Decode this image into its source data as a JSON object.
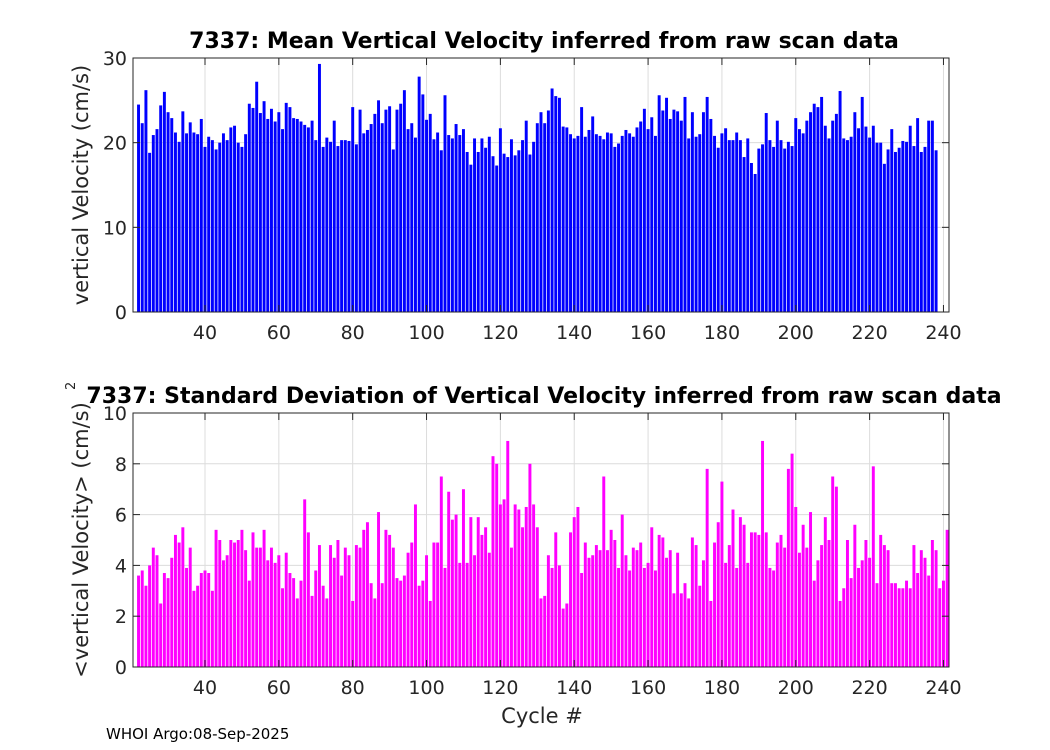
{
  "colors": {
    "top_bars": "#0000ff",
    "bottom_bars": "#ff00ff",
    "grid": "#dcdcdc",
    "axis": "#262626"
  },
  "footer": "WHOI Argo:08-Sep-2025",
  "chart_data": [
    {
      "type": "bar",
      "title": "7337: Mean Vertical Velocity inferred from raw scan data",
      "xlabel": "",
      "ylabel": "vertical Velocity (cm/s)",
      "xlim": [
        20.5,
        241.5
      ],
      "ylim": [
        0,
        30
      ],
      "xticks": [
        40,
        60,
        80,
        100,
        120,
        140,
        160,
        180,
        200,
        220,
        240
      ],
      "xtick_labels": [
        "40",
        "60",
        "80",
        "100",
        "120",
        "140",
        "160",
        "180",
        "200",
        "220",
        "240"
      ],
      "yticks": [
        0,
        10,
        20,
        30
      ],
      "ytick_labels": [
        "0",
        "10",
        "20",
        "30"
      ],
      "grid": true,
      "x_start": 22,
      "values": [
        24.5,
        22.3,
        26.2,
        18.8,
        20.9,
        21.6,
        24.4,
        26.0,
        23.6,
        22.9,
        21.2,
        20.1,
        23.7,
        21.1,
        22.4,
        21.2,
        21.0,
        22.8,
        19.5,
        20.7,
        20.3,
        19.2,
        20.0,
        21.1,
        20.3,
        21.8,
        22.0,
        20.0,
        19.5,
        21.0,
        24.6,
        24.1,
        27.2,
        23.5,
        24.9,
        22.8,
        24.0,
        22.5,
        23.6,
        21.6,
        24.7,
        24.2,
        22.9,
        22.8,
        22.5,
        22.1,
        21.8,
        22.6,
        20.3,
        29.3,
        19.5,
        20.6,
        20.1,
        22.6,
        19.6,
        20.3,
        20.3,
        20.2,
        24.2,
        19.8,
        23.9,
        21.1,
        21.5,
        22.2,
        23.4,
        25.0,
        22.3,
        23.9,
        24.3,
        19.2,
        23.9,
        24.6,
        26.2,
        21.6,
        22.3,
        20.6,
        27.8,
        25.7,
        22.7,
        23.4,
        20.4,
        21.2,
        19.1,
        25.6,
        20.9,
        20.5,
        22.2,
        20.9,
        21.6,
        18.9,
        17.4,
        20.5,
        18.9,
        20.5,
        19.4,
        20.7,
        18.4,
        17.3,
        21.7,
        18.7,
        18.3,
        20.4,
        18.5,
        19.1,
        20.3,
        22.6,
        18.6,
        20.1,
        22.3,
        23.6,
        22.3,
        23.8,
        26.4,
        25.5,
        25.3,
        21.9,
        21.8,
        21.0,
        20.5,
        20.8,
        24.2,
        20.7,
        21.5,
        23.1,
        21.0,
        20.8,
        20.4,
        21.2,
        21.1,
        19.5,
        19.9,
        20.8,
        21.5,
        21.1,
        20.7,
        21.8,
        22.5,
        24.0,
        21.6,
        23.0,
        20.8,
        25.6,
        23.8,
        25.3,
        22.8,
        23.9,
        23.7,
        22.6,
        25.4,
        20.5,
        23.6,
        20.7,
        21.0,
        23.6,
        25.4,
        22.8,
        20.8,
        19.4,
        21.1,
        21.7,
        20.3,
        20.3,
        21.2,
        20.3,
        18.3,
        20.5,
        17.6,
        16.3,
        19.3,
        19.8,
        23.5,
        20.3,
        19.5,
        22.6,
        20.3,
        19.3,
        20.1,
        19.6,
        22.9,
        21.6,
        21.1,
        22.6,
        23.6,
        24.6,
        24.2,
        25.4,
        22.0,
        20.5,
        22.6,
        23.4,
        26.1,
        20.5,
        20.3,
        20.7,
        23.6,
        21.7,
        25.4,
        21.9,
        20.6,
        22.0,
        20.0,
        20.0,
        17.5,
        19.2,
        21.6,
        18.9,
        19.4,
        20.2,
        20.1,
        22.0,
        19.6,
        22.9,
        18.9,
        19.5,
        22.6,
        22.6,
        19.1
      ]
    },
    {
      "type": "bar",
      "title": "7337: Standard Deviation of Vertical Velocity inferred from raw scan data",
      "xlabel": "Cycle #",
      "ylabel": "<vertical Velocity> (cm/s)",
      "ylabel_superscript": "2",
      "xlim": [
        20.5,
        241.5
      ],
      "ylim": [
        0,
        10
      ],
      "xticks": [
        40,
        60,
        80,
        100,
        120,
        140,
        160,
        180,
        200,
        220,
        240
      ],
      "xtick_labels": [
        "40",
        "60",
        "80",
        "100",
        "120",
        "140",
        "160",
        "180",
        "200",
        "220",
        "240"
      ],
      "yticks": [
        0,
        2,
        4,
        6,
        8,
        10
      ],
      "ytick_labels": [
        "0",
        "2",
        "4",
        "6",
        "8",
        "10"
      ],
      "grid": true,
      "x_start": 22,
      "values": [
        3.6,
        3.8,
        3.2,
        4.0,
        4.7,
        4.4,
        2.5,
        3.7,
        3.5,
        4.3,
        5.2,
        4.9,
        5.5,
        3.9,
        4.7,
        3.0,
        3.2,
        3.7,
        3.8,
        3.7,
        3.0,
        5.4,
        5.0,
        4.2,
        4.4,
        5.0,
        4.9,
        5.0,
        5.4,
        4.6,
        3.4,
        5.3,
        4.7,
        4.7,
        5.4,
        4.2,
        4.7,
        4.1,
        4.4,
        3.1,
        4.5,
        3.7,
        3.5,
        2.7,
        3.4,
        6.6,
        5.3,
        2.8,
        3.8,
        4.8,
        3.2,
        2.7,
        4.8,
        4.3,
        5.0,
        3.6,
        4.7,
        4.4,
        2.6,
        4.8,
        4.7,
        5.4,
        5.7,
        3.3,
        2.7,
        6.1,
        3.3,
        5.4,
        5.2,
        4.7,
        3.5,
        3.4,
        3.6,
        4.5,
        4.9,
        6.4,
        3.2,
        3.4,
        4.4,
        2.6,
        4.9,
        4.9,
        7.5,
        3.9,
        6.9,
        5.8,
        6.0,
        4.1,
        7.0,
        4.1,
        5.9,
        4.4,
        5.9,
        5.2,
        5.5,
        4.5,
        8.3,
        8.0,
        6.4,
        6.6,
        8.9,
        4.7,
        6.4,
        6.2,
        5.5,
        6.3,
        8.0,
        6.4,
        5.5,
        2.7,
        2.8,
        4.4,
        3.9,
        5.3,
        4.0,
        2.3,
        2.5,
        5.3,
        5.9,
        6.3,
        3.7,
        4.9,
        4.3,
        4.4,
        4.8,
        4.6,
        7.5,
        4.6,
        5.4,
        5.0,
        3.9,
        6.0,
        4.4,
        3.8,
        4.7,
        4.6,
        4.9,
        3.9,
        4.1,
        5.5,
        3.8,
        5.2,
        5.1,
        4.3,
        4.6,
        2.9,
        4.5,
        2.9,
        3.3,
        2.7,
        5.1,
        4.8,
        3.2,
        4.2,
        7.8,
        2.6,
        4.9,
        5.7,
        7.3,
        4.1,
        4.8,
        6.2,
        3.9,
        5.9,
        5.6,
        4.1,
        5.3,
        5.3,
        5.2,
        8.9,
        5.3,
        3.9,
        3.8,
        4.9,
        5.2,
        4.7,
        7.8,
        8.4,
        6.3,
        4.5,
        5.6,
        4.7,
        6.1,
        3.4,
        4.2,
        4.8,
        5.9,
        5.0,
        7.5,
        7.1,
        2.6,
        3.1,
        5.0,
        3.5,
        5.6,
        3.9,
        4.2,
        5.0,
        4.3,
        7.9,
        3.3,
        5.2,
        4.8,
        4.6,
        3.3,
        3.3,
        3.1,
        3.1,
        3.4,
        3.1,
        4.8,
        3.7,
        4.6,
        4.3,
        3.6,
        5.0,
        4.6,
        3.1,
        3.4,
        5.4
      ]
    }
  ]
}
